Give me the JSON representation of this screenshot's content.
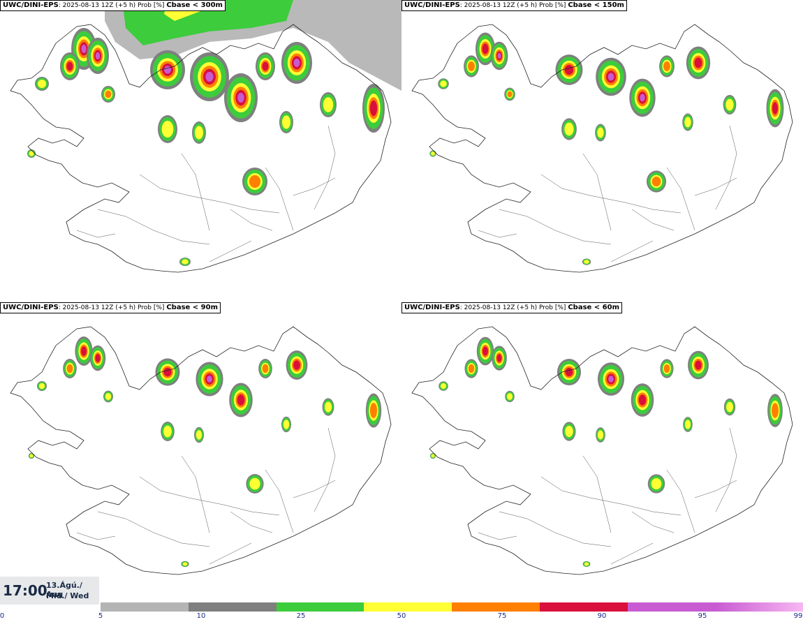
{
  "panels": [
    {
      "source": "UWC/DINI-EPS",
      "run": ": 2025-08-13 12Z (+5 h) Prob [%]",
      "threshold": "Cbase < 300m"
    },
    {
      "source": "UWC/DINI-EPS",
      "run": ": 2025-08-13 12Z (+5 h) Prob [%]",
      "threshold": "Cbase < 150m"
    },
    {
      "source": "UWC/DINI-EPS",
      "run": ": 2025-08-13 12Z (+5 h) Prob [%]",
      "threshold": "Cbase < 90m"
    },
    {
      "source": "UWC/DINI-EPS",
      "run": ": 2025-08-13 12Z (+5 h) Prob [%]",
      "threshold": "Cbase < 60m"
    }
  ],
  "time": {
    "clock": "17:00",
    "date_line1": "13.Ágú./ Aug",
    "date_line2": "Mið./ Wed"
  },
  "legend": {
    "ticks": [
      "0",
      "5",
      "10",
      "25",
      "50",
      "75",
      "90",
      "95",
      "99"
    ],
    "colors": [
      "#b4b4b4",
      "#7f7f7f",
      "#3ccc3c",
      "#ffff33",
      "#ff7f00",
      "#d90f3c",
      "#c85ad2",
      "#f7b8f2"
    ]
  }
}
